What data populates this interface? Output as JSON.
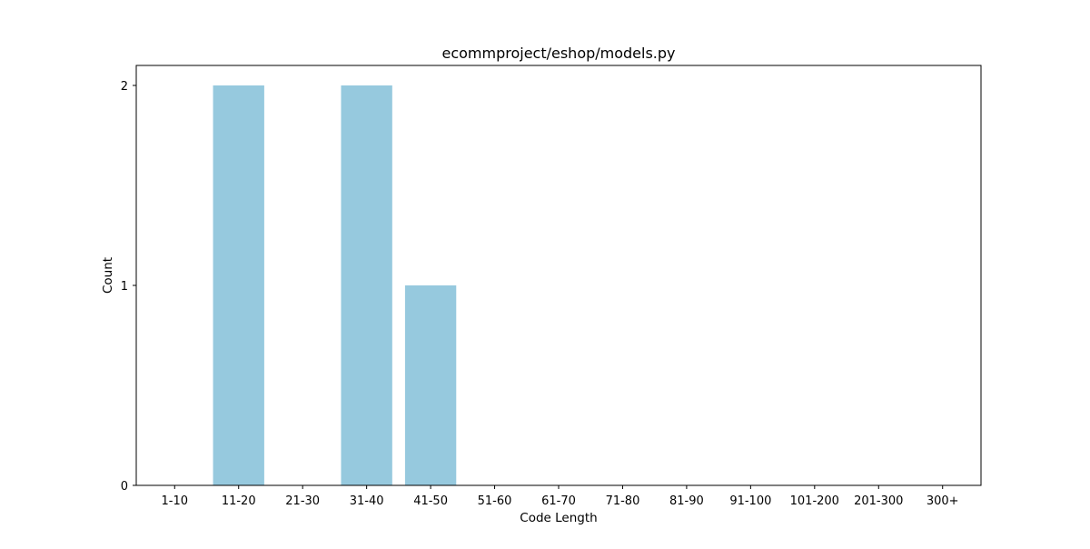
{
  "chart_data": {
    "type": "bar",
    "title": "ecommproject/eshop/models.py",
    "xlabel": "Code Length",
    "ylabel": "Count",
    "categories": [
      "1-10",
      "11-20",
      "21-30",
      "31-40",
      "41-50",
      "51-60",
      "61-70",
      "71-80",
      "81-90",
      "91-100",
      "101-200",
      "201-300",
      "300+"
    ],
    "values": [
      0,
      2,
      0,
      2,
      1,
      0,
      0,
      0,
      0,
      0,
      0,
      0,
      0
    ],
    "ylim": [
      0,
      2.1
    ],
    "yticks": [
      0,
      1,
      2
    ],
    "grid": false,
    "legend": "none",
    "bar_color": "#96c9de"
  }
}
